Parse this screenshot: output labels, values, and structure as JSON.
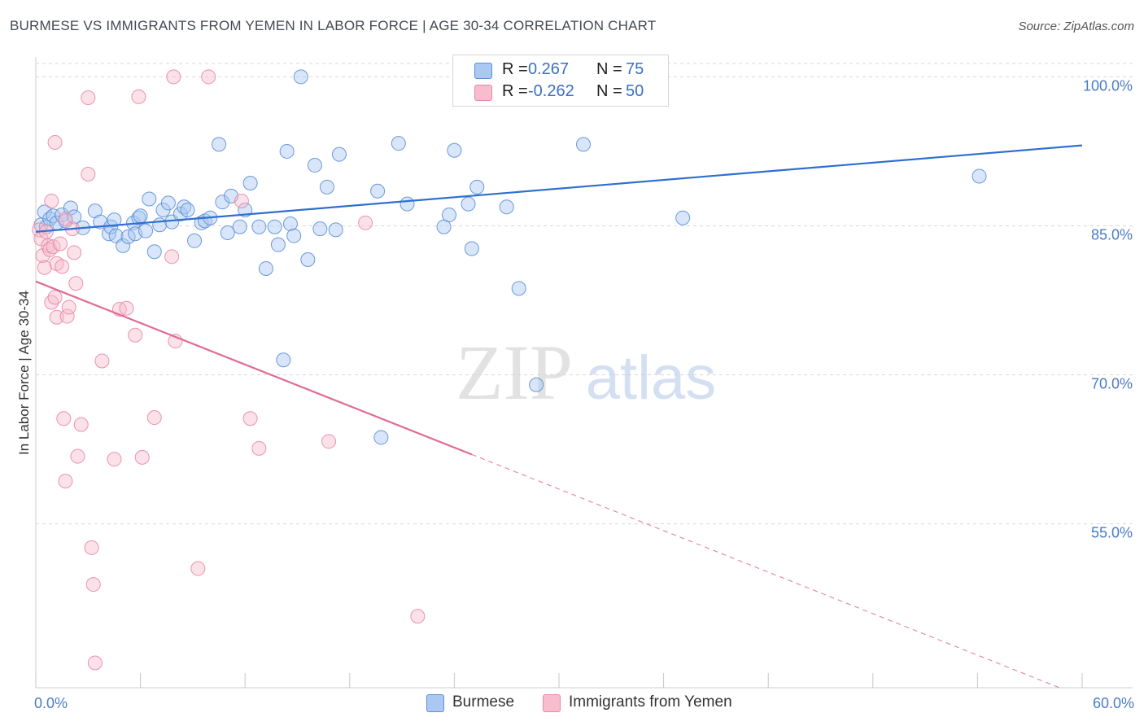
{
  "title": "BURMESE VS IMMIGRANTS FROM YEMEN IN LABOR FORCE | AGE 30-34 CORRELATION CHART",
  "source": "Source: ZipAtlas.com",
  "watermark": {
    "zip": "ZIP",
    "atlas": "atlas"
  },
  "colors": {
    "blue_fill": "#aac8f2",
    "blue_stroke": "#5b8fd6",
    "blue_line": "#2f6fd0",
    "pink_fill": "#f7bccd",
    "pink_stroke": "#e888a8",
    "pink_line": "#e06b96",
    "tick_text": "#4a7cc7",
    "grid": "#d8d8d8"
  },
  "legend_top": {
    "rows": [
      {
        "r_label": "R =",
        "r_value": "0.267",
        "n_label": "N =",
        "n_value": "75",
        "series": "blue"
      },
      {
        "r_label": "R =",
        "r_value": "-0.262",
        "n_label": "N =",
        "n_value": "50",
        "series": "pink"
      }
    ]
  },
  "legend_bottom": [
    {
      "label": "Burmese",
      "series": "blue"
    },
    {
      "label": "Immigrants from Yemen",
      "series": "pink"
    }
  ],
  "chart_data": {
    "type": "scatter",
    "title": "BURMESE VS IMMIGRANTS FROM YEMEN IN LABOR FORCE | AGE 30-34 CORRELATION CHART",
    "xlabel": "",
    "ylabel": "In Labor Force | Age 30-34",
    "xlim": [
      0,
      60
    ],
    "ylim": [
      38.5,
      102
    ],
    "x_tick_labels": [
      {
        "value": 0,
        "label": "0.0%"
      },
      {
        "value": 60,
        "label": "60.0%"
      }
    ],
    "x_minor_ticks": [
      0,
      6,
      12,
      18,
      24,
      30,
      36,
      42,
      48,
      54,
      60
    ],
    "y_ticks": [
      {
        "value": 100,
        "label": "100.0%"
      },
      {
        "value": 85,
        "label": "85.0%"
      },
      {
        "value": 70,
        "label": "70.0%"
      },
      {
        "value": 55,
        "label": "55.0%"
      }
    ],
    "grid": true,
    "legend_position": "top-center",
    "series": [
      {
        "name": "Burmese",
        "color": "blue",
        "r": 0.267,
        "n": 75,
        "trend": {
          "x0": 0,
          "y0": 84.4,
          "x1": 60,
          "y1": 93.1,
          "dashed_from_x": null
        },
        "points": [
          [
            0.3,
            85.1
          ],
          [
            0.5,
            86.4
          ],
          [
            0.6,
            84.9
          ],
          [
            0.8,
            85.7
          ],
          [
            1.0,
            86.0
          ],
          [
            1.2,
            85.3
          ],
          [
            1.5,
            86.1
          ],
          [
            1.7,
            85.5
          ],
          [
            2.0,
            86.8
          ],
          [
            2.2,
            85.9
          ],
          [
            2.7,
            84.8
          ],
          [
            3.4,
            86.5
          ],
          [
            3.7,
            85.4
          ],
          [
            4.2,
            84.2
          ],
          [
            4.3,
            84.9
          ],
          [
            4.5,
            85.6
          ],
          [
            4.6,
            84.0
          ],
          [
            5.0,
            83.0
          ],
          [
            5.3,
            83.9
          ],
          [
            5.6,
            85.3
          ],
          [
            5.7,
            84.2
          ],
          [
            5.9,
            85.8
          ],
          [
            6.0,
            86.0
          ],
          [
            6.3,
            84.5
          ],
          [
            6.5,
            87.7
          ],
          [
            6.8,
            82.4
          ],
          [
            7.1,
            85.1
          ],
          [
            7.3,
            86.6
          ],
          [
            7.6,
            87.3
          ],
          [
            7.8,
            85.4
          ],
          [
            8.3,
            86.2
          ],
          [
            8.5,
            86.9
          ],
          [
            8.7,
            86.6
          ],
          [
            9.1,
            83.5
          ],
          [
            9.5,
            85.3
          ],
          [
            9.7,
            85.5
          ],
          [
            10.0,
            85.8
          ],
          [
            10.5,
            93.2
          ],
          [
            10.7,
            87.4
          ],
          [
            11.0,
            84.3
          ],
          [
            11.2,
            88.0
          ],
          [
            11.7,
            84.9
          ],
          [
            12.0,
            86.6
          ],
          [
            12.3,
            89.3
          ],
          [
            12.8,
            84.9
          ],
          [
            13.2,
            80.7
          ],
          [
            13.7,
            84.9
          ],
          [
            13.9,
            83.1
          ],
          [
            14.2,
            71.5
          ],
          [
            14.4,
            92.5
          ],
          [
            14.6,
            85.2
          ],
          [
            14.8,
            84.0
          ],
          [
            15.2,
            100.0
          ],
          [
            15.6,
            81.6
          ],
          [
            16.0,
            91.1
          ],
          [
            16.3,
            84.7
          ],
          [
            16.7,
            88.9
          ],
          [
            17.2,
            84.6
          ],
          [
            17.4,
            92.2
          ],
          [
            19.6,
            88.5
          ],
          [
            19.8,
            63.7
          ],
          [
            20.8,
            93.3
          ],
          [
            21.3,
            87.2
          ],
          [
            23.4,
            84.9
          ],
          [
            23.7,
            86.1
          ],
          [
            24.0,
            92.6
          ],
          [
            24.8,
            87.2
          ],
          [
            25.0,
            82.7
          ],
          [
            25.3,
            88.9
          ],
          [
            27.0,
            86.9
          ],
          [
            27.7,
            78.7
          ],
          [
            28.7,
            69.0
          ],
          [
            31.4,
            93.2
          ],
          [
            37.1,
            85.8
          ],
          [
            54.1,
            90.0
          ]
        ]
      },
      {
        "name": "Immigrants from Yemen",
        "color": "pink",
        "r": -0.262,
        "n": 50,
        "trend": {
          "x0": 0,
          "y0": 79.4,
          "x1": 60,
          "y1": 37.6,
          "dashed_from_x": 25
        },
        "points": [
          [
            0.2,
            84.6
          ],
          [
            0.3,
            83.7
          ],
          [
            0.4,
            82.0
          ],
          [
            0.5,
            80.8
          ],
          [
            0.6,
            84.4
          ],
          [
            0.7,
            83.0
          ],
          [
            0.8,
            82.6
          ],
          [
            0.9,
            77.3
          ],
          [
            0.9,
            87.5
          ],
          [
            1.0,
            82.9
          ],
          [
            1.1,
            93.4
          ],
          [
            1.1,
            77.8
          ],
          [
            1.2,
            81.2
          ],
          [
            1.2,
            75.8
          ],
          [
            1.4,
            83.2
          ],
          [
            1.5,
            80.9
          ],
          [
            1.6,
            65.6
          ],
          [
            1.7,
            85.7
          ],
          [
            1.7,
            59.3
          ],
          [
            1.8,
            75.9
          ],
          [
            1.9,
            76.8
          ],
          [
            2.1,
            84.7
          ],
          [
            2.2,
            82.3
          ],
          [
            2.3,
            79.2
          ],
          [
            2.4,
            61.8
          ],
          [
            3.0,
            97.9
          ],
          [
            3.0,
            90.2
          ],
          [
            3.2,
            52.6
          ],
          [
            3.3,
            48.9
          ],
          [
            3.4,
            41.0
          ],
          [
            3.8,
            71.4
          ],
          [
            4.5,
            61.5
          ],
          [
            4.8,
            76.6
          ],
          [
            5.2,
            76.7
          ],
          [
            5.7,
            74.0
          ],
          [
            5.9,
            98.0
          ],
          [
            6.1,
            61.7
          ],
          [
            6.8,
            65.7
          ],
          [
            7.8,
            81.9
          ],
          [
            7.9,
            100.0
          ],
          [
            8.0,
            73.4
          ],
          [
            9.3,
            50.5
          ],
          [
            9.9,
            100.0
          ],
          [
            11.8,
            87.5
          ],
          [
            12.3,
            65.6
          ],
          [
            12.8,
            62.6
          ],
          [
            16.8,
            63.3
          ],
          [
            18.9,
            85.3
          ],
          [
            21.9,
            45.7
          ],
          [
            2.6,
            65.0
          ]
        ]
      }
    ]
  }
}
